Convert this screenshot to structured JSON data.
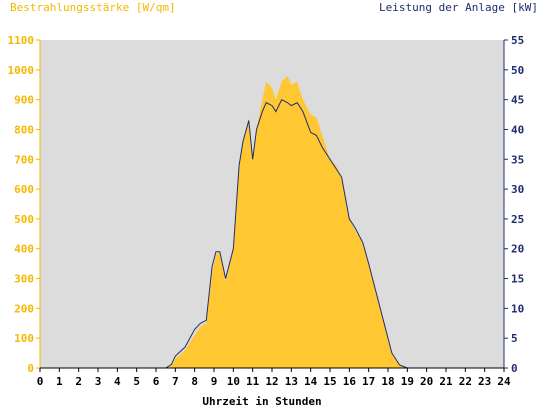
{
  "chart_data": {
    "type": "area",
    "left_axis_title": "Bestrahlungsstärke [W/qm]",
    "right_axis_title": "Leistung der Anlage [kW]",
    "xlabel": "Uhrzeit in Stunden",
    "xlim": [
      0,
      24
    ],
    "ylim_left": [
      0,
      1100
    ],
    "ylim_right": [
      0,
      55
    ],
    "x_ticks": [
      "0",
      "1",
      "2",
      "3",
      "4",
      "5",
      "6",
      "7",
      "8",
      "9",
      "10",
      "11",
      "12",
      "13",
      "14",
      "15",
      "16",
      "17",
      "18",
      "19",
      "20",
      "21",
      "22",
      "23",
      "24"
    ],
    "y_left_ticks": [
      "0",
      "100",
      "200",
      "300",
      "400",
      "500",
      "600",
      "700",
      "800",
      "900",
      "1000",
      "1100"
    ],
    "y_right_ticks": [
      "0",
      "5",
      "10",
      "15",
      "20",
      "25",
      "30",
      "35",
      "40",
      "45",
      "50",
      "55"
    ],
    "grid": false,
    "colors": {
      "irradiance_fill": "#FFC832",
      "power_line": "#1F2D6E",
      "plot_bg": "#DCDCDC",
      "left_axis_text": "#F5B800",
      "right_axis_text": "#1F2D6E",
      "xaxis_text": "#000000"
    },
    "series": [
      {
        "axis": "left",
        "style": "area",
        "x": [
          0,
          6.5,
          6.8,
          7.0,
          7.5,
          8.0,
          8.3,
          8.6,
          8.9,
          9.1,
          9.3,
          9.6,
          10.0,
          10.3,
          10.5,
          10.8,
          11.0,
          11.2,
          11.5,
          11.7,
          12.0,
          12.2,
          12.5,
          12.8,
          13.0,
          13.3,
          13.6,
          14.0,
          14.3,
          14.6,
          15.0,
          15.3,
          15.6,
          16.0,
          16.3,
          16.7,
          17.0,
          17.4,
          17.8,
          18.2,
          18.6,
          19.0,
          24
        ],
        "y": [
          0,
          0,
          10,
          30,
          60,
          110,
          140,
          150,
          320,
          380,
          390,
          290,
          400,
          680,
          760,
          840,
          700,
          800,
          900,
          960,
          940,
          900,
          960,
          980,
          950,
          960,
          900,
          850,
          840,
          780,
          700,
          680,
          640,
          500,
          460,
          420,
          350,
          250,
          150,
          50,
          10,
          0,
          0
        ]
      },
      {
        "axis": "right",
        "style": "line",
        "x": [
          0,
          6.5,
          6.8,
          7.0,
          7.5,
          8.0,
          8.3,
          8.6,
          8.9,
          9.1,
          9.3,
          9.6,
          10.0,
          10.3,
          10.5,
          10.8,
          11.0,
          11.2,
          11.5,
          11.7,
          12.0,
          12.2,
          12.5,
          12.8,
          13.0,
          13.3,
          13.6,
          14.0,
          14.3,
          14.6,
          15.0,
          15.3,
          15.6,
          16.0,
          16.3,
          16.7,
          17.0,
          17.4,
          17.8,
          18.2,
          18.6,
          19.0,
          24
        ],
        "y": [
          0,
          0,
          0.6,
          2,
          3.5,
          6.5,
          7.5,
          8,
          17,
          19.5,
          19.5,
          15,
          20,
          34,
          38,
          41.5,
          35,
          40,
          43,
          44.5,
          44,
          43,
          45,
          44.5,
          44,
          44.5,
          43,
          39.5,
          39,
          37,
          35,
          33.5,
          32,
          25,
          23.5,
          21,
          17.5,
          12.5,
          7.5,
          2.5,
          0.5,
          0,
          0
        ]
      }
    ]
  }
}
